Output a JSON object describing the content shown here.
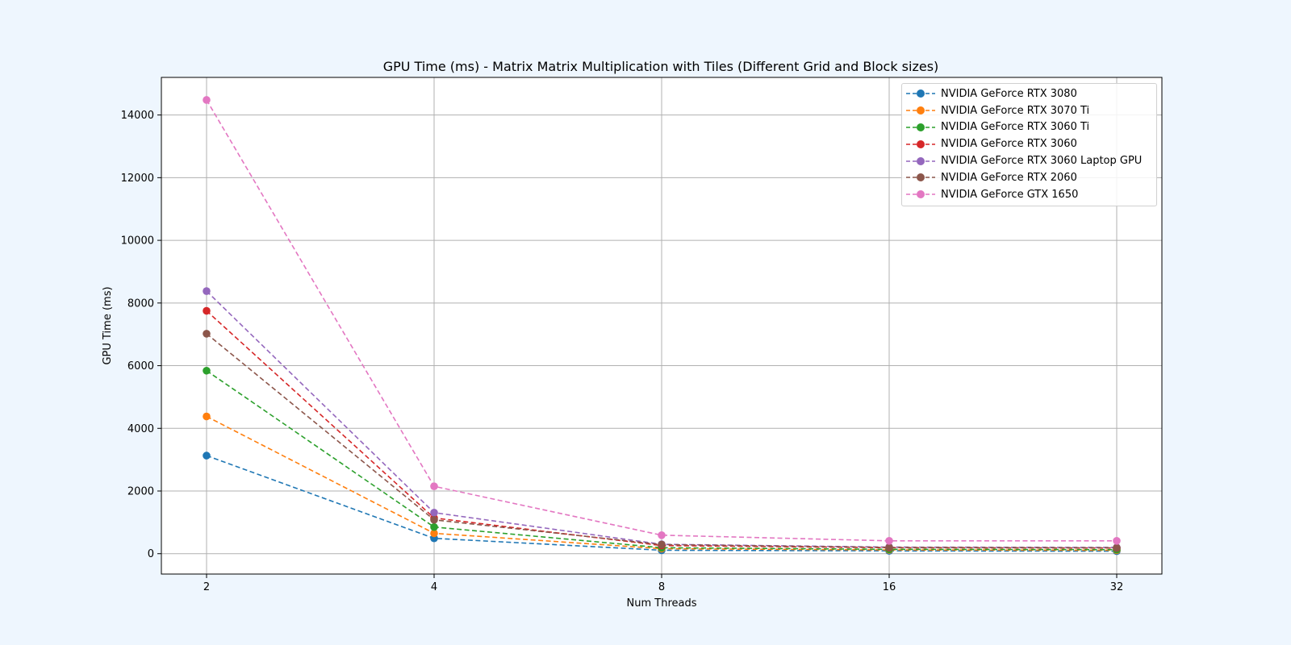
{
  "chart_data": {
    "type": "line",
    "title": "GPU Time (ms) - Matrix Matrix Multiplication with Tiles (Different Grid and Block sizes)",
    "xlabel": "Num Threads",
    "ylabel": "GPU Time (ms)",
    "categories": [
      "2",
      "4",
      "8",
      "16",
      "32"
    ],
    "ylim": [
      -650,
      15200
    ],
    "yticks": [
      0,
      2000,
      4000,
      6000,
      8000,
      10000,
      12000,
      14000
    ],
    "ytick_labels": [
      "0",
      "2000",
      "4000",
      "6000",
      "8000",
      "10000",
      "12000",
      "14000"
    ],
    "grid": true,
    "legend_position": "top-right",
    "line_style": "dashed",
    "marker": "circle",
    "series": [
      {
        "name": "NVIDIA GeForce RTX 3080",
        "color": "#1f77b4",
        "values": [
          3130,
          490,
          110,
          90,
          80
        ]
      },
      {
        "name": "NVIDIA GeForce RTX 3070 Ti",
        "color": "#ff7f0e",
        "values": [
          4380,
          650,
          160,
          120,
          110
        ]
      },
      {
        "name": "NVIDIA GeForce RTX 3060 Ti",
        "color": "#2ca02c",
        "values": [
          5840,
          850,
          190,
          140,
          130
        ]
      },
      {
        "name": "NVIDIA GeForce RTX 3060",
        "color": "#d62728",
        "values": [
          7750,
          1140,
          260,
          190,
          180
        ]
      },
      {
        "name": "NVIDIA GeForce RTX 3060 Laptop GPU",
        "color": "#9467bd",
        "values": [
          8380,
          1310,
          300,
          210,
          200
        ]
      },
      {
        "name": "NVIDIA GeForce RTX 2060",
        "color": "#8c564b",
        "values": [
          7020,
          1080,
          290,
          200,
          190
        ]
      },
      {
        "name": "NVIDIA GeForce GTX 1650",
        "color": "#e377c2",
        "values": [
          14480,
          2150,
          590,
          410,
          410
        ]
      }
    ]
  }
}
